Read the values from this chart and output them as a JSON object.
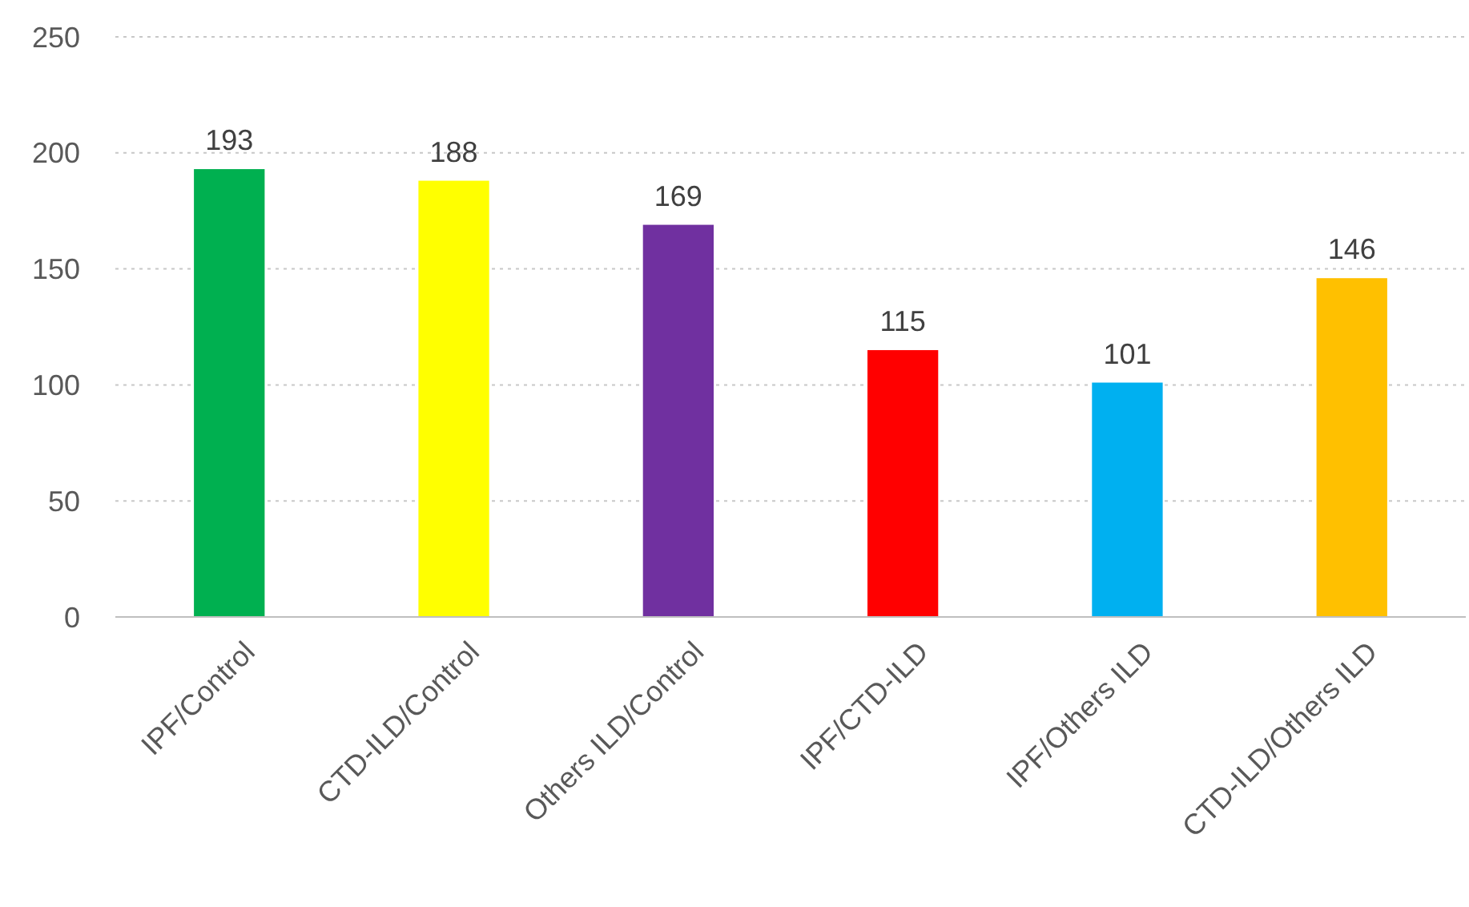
{
  "chart_data": {
    "type": "bar",
    "categories": [
      "IPF/Control",
      "CTD-ILD/Control",
      "Others ILD/Control",
      "IPF/CTD-ILD",
      "IPF/Others ILD",
      "CTD-ILD/Others ILD"
    ],
    "values": [
      193,
      188,
      169,
      115,
      101,
      146
    ],
    "colors": [
      "#00b050",
      "#ffff00",
      "#7030a0",
      "#ff0000",
      "#00b0f0",
      "#ffc000"
    ],
    "ylim": [
      0,
      250
    ],
    "yticks": [
      0,
      50,
      100,
      150,
      200,
      250
    ],
    "grid": "y",
    "data_labels": true
  }
}
